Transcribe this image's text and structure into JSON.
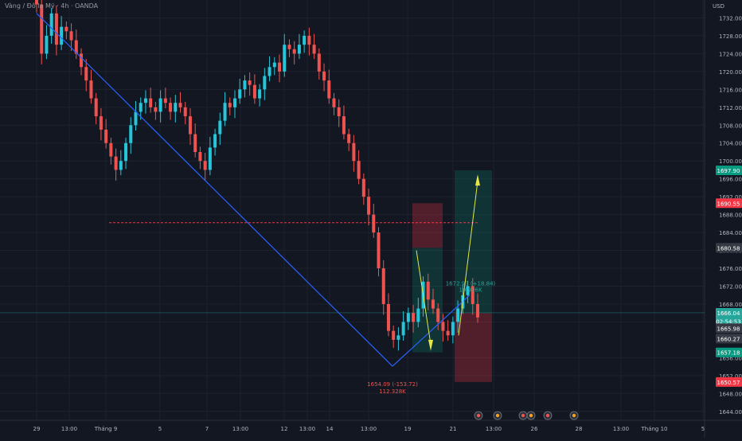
{
  "header": {
    "symbol_text": "Vàng / Đô la Mỹ · 4h · OANDA"
  },
  "price_axis": {
    "unit": "USD",
    "ticks": [
      "1732.00",
      "1728.00",
      "1724.00",
      "1720.00",
      "1716.00",
      "1712.00",
      "1708.00",
      "1704.00",
      "1700.00",
      "1696.00",
      "1692.00",
      "1688.00",
      "1684.00",
      "1680.00",
      "1676.00",
      "1672.00",
      "1668.00",
      "1664.00",
      "1656.00",
      "1652.00",
      "1648.00",
      "1644.00"
    ]
  },
  "time_axis": {
    "labels": [
      "29",
      "13:00",
      "Tháng 9",
      "5",
      "7",
      "13:00",
      "12",
      "13:00",
      "14",
      "13:00",
      "19",
      "21",
      "13:00",
      "26",
      "28",
      "13:00",
      "Tháng 10",
      "5"
    ]
  },
  "price_tags": [
    {
      "label": "1697.90",
      "value": 1697.9,
      "color": "#089981"
    },
    {
      "label": "1690.55",
      "value": 1690.55,
      "color": "#f23645"
    },
    {
      "label": "1680.58",
      "value": 1680.58,
      "color": "#363a45"
    },
    {
      "label": "1666.04",
      "value": 1666.04,
      "color": "#26a69a"
    },
    {
      "label": "02:54:53",
      "value": 1664.2,
      "color": "#26a69a"
    },
    {
      "label": "1665.98",
      "value": 1662.6,
      "color": "#363a45"
    },
    {
      "label": "1660.27",
      "value": 1660.27,
      "color": "#363a45"
    },
    {
      "label": "1657.18",
      "value": 1657.18,
      "color": "#089981"
    },
    {
      "label": "1650.57",
      "value": 1650.57,
      "color": "#f23645"
    }
  ],
  "annotations": {
    "low_label": "1654.09 (-153.72)",
    "low_volume": "112.328K",
    "measure_label": "1672.93 (+18.84)",
    "measure_volume": "10.996K"
  },
  "colors": {
    "up": "#26c6da",
    "down": "#ef5350",
    "trend": "#2962ff",
    "arrow": "#e6e645",
    "long_zone": "#089981",
    "short_zone": "#f23645"
  },
  "chart_data": {
    "type": "candlestick",
    "ylim": [
      1642,
      1736
    ],
    "close_series": [
      1735,
      1724,
      1728,
      1733,
      1726,
      1730,
      1729,
      1727,
      1724,
      1721,
      1718,
      1714,
      1710,
      1707,
      1704,
      1701,
      1698,
      1700,
      1704,
      1708,
      1711,
      1713,
      1714,
      1712,
      1711,
      1714,
      1713,
      1711,
      1713,
      1712,
      1710,
      1706,
      1702,
      1700,
      1698,
      1703,
      1706,
      1709,
      1713,
      1712,
      1714,
      1716,
      1718,
      1717,
      1714,
      1716,
      1719,
      1721,
      1722,
      1720,
      1726,
      1725,
      1724,
      1726,
      1728,
      1726,
      1724,
      1720,
      1718,
      1714,
      1712,
      1710,
      1706,
      1704,
      1700,
      1696,
      1692,
      1688,
      1684,
      1676,
      1668,
      1662,
      1660,
      1661,
      1664,
      1666,
      1664,
      1667,
      1673,
      1669,
      1667,
      1664,
      1662,
      1661,
      1664,
      1667,
      1670,
      1672,
      1668,
      1665
    ],
    "trendline": {
      "from": 1733,
      "to": 1654.09
    },
    "long_position": {
      "entry": 1666,
      "target": 1697.9,
      "stop": 1650.57
    },
    "short_position": {
      "entry": 1680.58,
      "stop": 1690.55,
      "target": 1657.18
    },
    "horizontal_levels": [
      1686.2,
      1666.04
    ],
    "low_point": 1654.09,
    "measure_point": 1672.93
  }
}
